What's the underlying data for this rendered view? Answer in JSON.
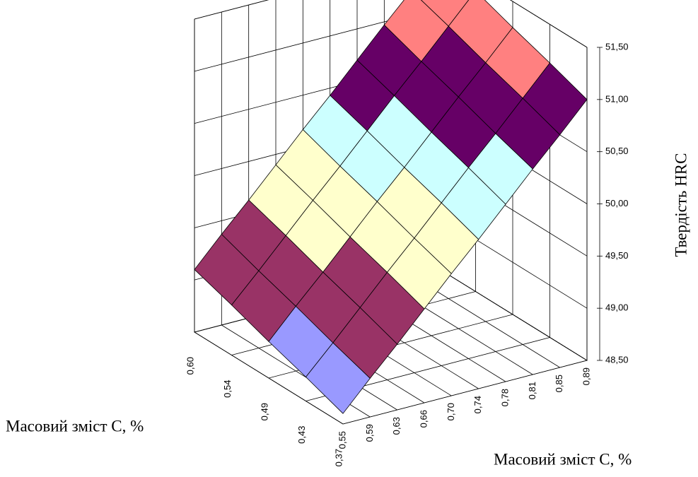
{
  "chart_data": {
    "type": "surface",
    "zlabel": "Твердість HRC",
    "xlabel": "Масовий зміст C, %",
    "ylabel": "Масовий зміст C, %",
    "x_categories": [
      "0,55",
      "0,59",
      "0,63",
      "0,66",
      "0,70",
      "0,74",
      "0,78",
      "0,81",
      "0,85",
      "0,89"
    ],
    "y_categories": [
      "0,37",
      "0,43",
      "0,49",
      "0,54",
      "0,60"
    ],
    "values": [
      [
        48.6,
        48.87,
        49.13,
        49.4,
        49.67,
        49.93,
        50.2,
        50.47,
        50.73,
        51.0
      ],
      [
        48.73,
        48.99,
        49.26,
        49.53,
        49.79,
        50.06,
        50.33,
        50.59,
        50.86,
        51.13
      ],
      [
        48.85,
        49.12,
        49.38,
        49.65,
        49.92,
        50.18,
        50.45,
        50.72,
        50.98,
        51.25
      ],
      [
        48.98,
        49.24,
        49.51,
        49.78,
        50.04,
        50.31,
        50.58,
        50.84,
        51.11,
        51.38
      ],
      [
        49.1,
        49.37,
        49.63,
        49.9,
        50.17,
        50.43,
        50.7,
        50.97,
        51.23,
        51.5
      ]
    ],
    "band_colors": [
      "#9999ff",
      "#993366",
      "#ffffcc",
      "#ccffff",
      "#660066",
      "#ff8080"
    ],
    "zlim": [
      48.5,
      51.5
    ],
    "zticks": [
      {
        "value": 48.5,
        "label": "48,50"
      },
      {
        "value": 49,
        "label": "49,00"
      },
      {
        "value": 49.5,
        "label": "49,50"
      },
      {
        "value": 50,
        "label": "50,00"
      },
      {
        "value": 50.5,
        "label": "50,50"
      },
      {
        "value": 51,
        "label": "51,00"
      },
      {
        "value": 51.5,
        "label": "51,50"
      }
    ],
    "grid": true
  }
}
